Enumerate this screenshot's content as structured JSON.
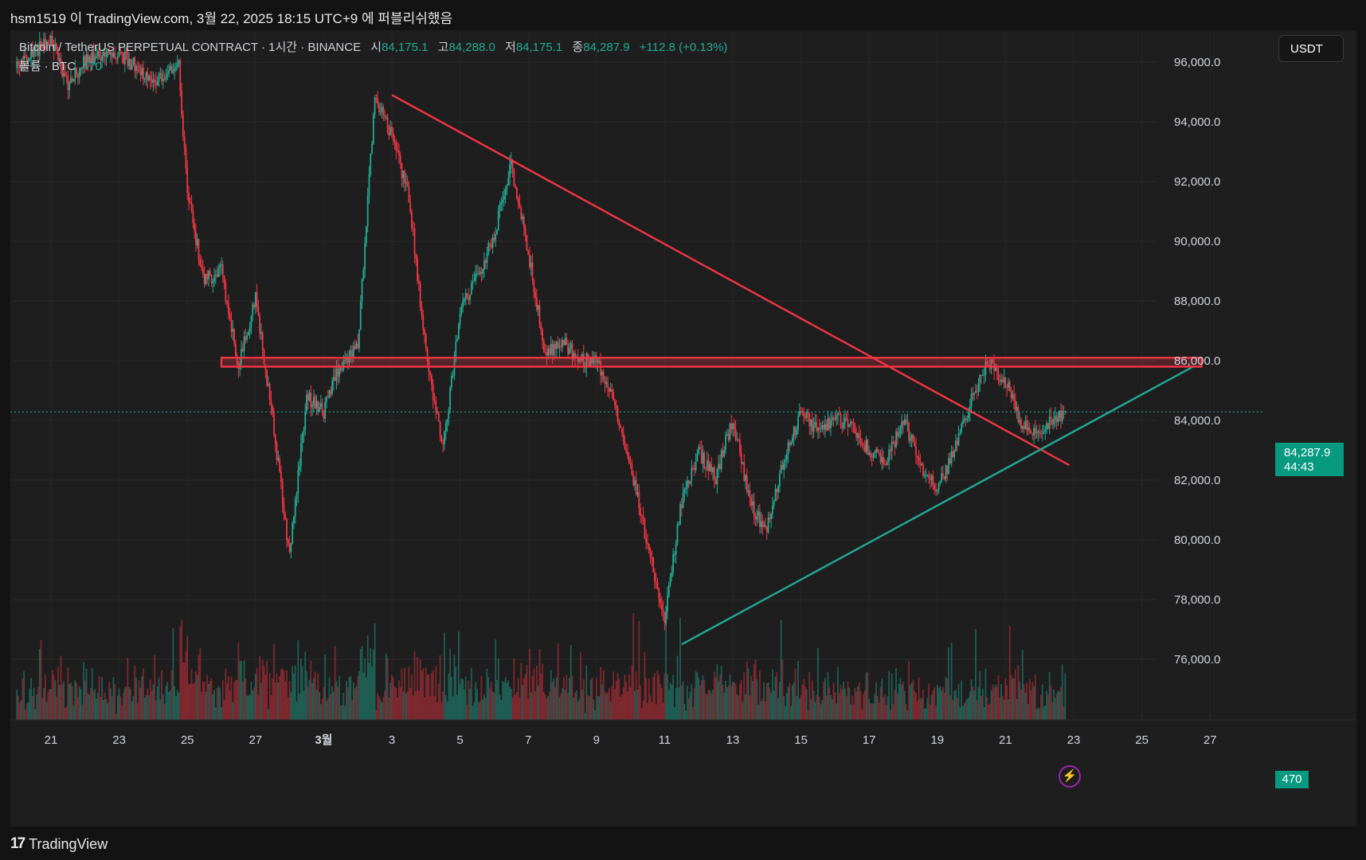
{
  "header": {
    "published_by": "hsm1519 이 TradingView.com, 3월 22, 2025 18:15 UTC+9 에 퍼블리쉬했음"
  },
  "legend": {
    "symbol_line": "Bitcoin / TetherUS PERPETUAL CONTRACT · 1시간 · BINANCE",
    "open_label": "시",
    "open_value": "84,175.1",
    "high_label": "고",
    "high_value": "84,288.0",
    "low_label": "저",
    "low_value": "84,175.1",
    "close_label": "종",
    "close_value": "84,287.9",
    "change": "+112.8 (+0.13%)",
    "volume_label": "볼륨 · BTC",
    "volume_value": "470"
  },
  "currency_button": "USDT",
  "price_tag": {
    "price": "84,287.9",
    "countdown": "44:43"
  },
  "volume_tag": "470",
  "footer": {
    "brand_logo": "17",
    "brand": "TradingView"
  },
  "colors": {
    "up": "#22ab94",
    "down": "#f23645",
    "resistance": "#f23645",
    "support": "#22ab94",
    "background": "#1e1e1e"
  },
  "icons": [
    "tradingview-logo-icon",
    "lightning-icon"
  ],
  "chart_data": {
    "type": "candlestick",
    "symbol": "Bitcoin / TetherUS PERPETUAL CONTRACT",
    "interval": "1시간",
    "exchange": "BINANCE",
    "x_ticks": [
      "21",
      "23",
      "25",
      "27",
      "3월",
      "3",
      "5",
      "7",
      "9",
      "11",
      "13",
      "15",
      "17",
      "19",
      "21",
      "23",
      "25",
      "27"
    ],
    "y_ticks": [
      "96,000.0",
      "94,000.0",
      "92,000.0",
      "90,000.0",
      "88,000.0",
      "86,000.0",
      "84,000.0",
      "82,000.0",
      "80,000.0",
      "78,000.0",
      "76,000.0"
    ],
    "ylim": [
      74500,
      96800
    ],
    "price_path": [
      [
        "2025-02-20",
        95800
      ],
      [
        "2025-02-21",
        96800
      ],
      [
        "2025-02-21T12",
        95200
      ],
      [
        "2025-02-22",
        96100
      ],
      [
        "2025-02-23",
        96300
      ],
      [
        "2025-02-24",
        95400
      ],
      [
        "2025-02-24T18",
        95900
      ],
      [
        "2025-02-25",
        91500
      ],
      [
        "2025-02-25T12",
        88700
      ],
      [
        "2025-02-26",
        89000
      ],
      [
        "2025-02-26T12",
        85800
      ],
      [
        "2025-02-27",
        88100
      ],
      [
        "2025-02-27T12",
        84000
      ],
      [
        "2025-02-28",
        79500
      ],
      [
        "2025-02-28T12",
        84800
      ],
      [
        "2025-03-01",
        84300
      ],
      [
        "2025-03-01T12",
        85900
      ],
      [
        "2025-03-02",
        86400
      ],
      [
        "2025-03-02T12",
        94800
      ],
      [
        "2025-03-03",
        93500
      ],
      [
        "2025-03-03T12",
        91500
      ],
      [
        "2025-03-04",
        86300
      ],
      [
        "2025-03-04T12",
        83000
      ],
      [
        "2025-03-05",
        87700
      ],
      [
        "2025-03-05T12",
        88800
      ],
      [
        "2025-03-06",
        90200
      ],
      [
        "2025-03-06T12",
        92600
      ],
      [
        "2025-03-07",
        89600
      ],
      [
        "2025-03-07T12",
        86200
      ],
      [
        "2025-03-08",
        86700
      ],
      [
        "2025-03-08T12",
        86000
      ],
      [
        "2025-03-09",
        86000
      ],
      [
        "2025-03-09T12",
        84800
      ],
      [
        "2025-03-10",
        82500
      ],
      [
        "2025-03-10T12",
        79800
      ],
      [
        "2025-03-11",
        77300
      ],
      [
        "2025-03-11T12",
        81300
      ],
      [
        "2025-03-12",
        82900
      ],
      [
        "2025-03-12T12",
        82100
      ],
      [
        "2025-03-13",
        84100
      ],
      [
        "2025-03-13T12",
        81200
      ],
      [
        "2025-03-14",
        80300
      ],
      [
        "2025-03-14T12",
        82700
      ],
      [
        "2025-03-15",
        84300
      ],
      [
        "2025-03-15T12",
        83600
      ],
      [
        "2025-03-16",
        84100
      ],
      [
        "2025-03-16T12",
        83800
      ],
      [
        "2025-03-17",
        83000
      ],
      [
        "2025-03-17T12",
        82600
      ],
      [
        "2025-03-18",
        84100
      ],
      [
        "2025-03-18T12",
        82500
      ],
      [
        "2025-03-19",
        81700
      ],
      [
        "2025-03-19T12",
        83000
      ],
      [
        "2025-03-20",
        84700
      ],
      [
        "2025-03-20T12",
        86000
      ],
      [
        "2025-03-21",
        85300
      ],
      [
        "2025-03-21T12",
        83800
      ],
      [
        "2025-03-22",
        83700
      ],
      [
        "2025-03-22T12",
        84100
      ],
      [
        "2025-03-22T18",
        84288
      ]
    ],
    "volume_ylim": [
      0,
      5000
    ],
    "drawings": [
      {
        "type": "trendline",
        "color": "#f23645",
        "start": [
          "2025-03-03",
          94900
        ],
        "end": [
          "2025-03-22T21",
          82500
        ]
      },
      {
        "type": "trendline",
        "color": "#22ab94",
        "start": [
          "2025-03-11T12",
          76500
        ],
        "end": [
          "2025-03-26T12",
          85800
        ]
      },
      {
        "type": "rectangle",
        "color": "#f23645",
        "x_start": "2025-02-26",
        "x_end": "2025-03-26T18",
        "y_low": 85800,
        "y_high": 86100
      }
    ],
    "current_price": 84287.9,
    "grid": true
  }
}
